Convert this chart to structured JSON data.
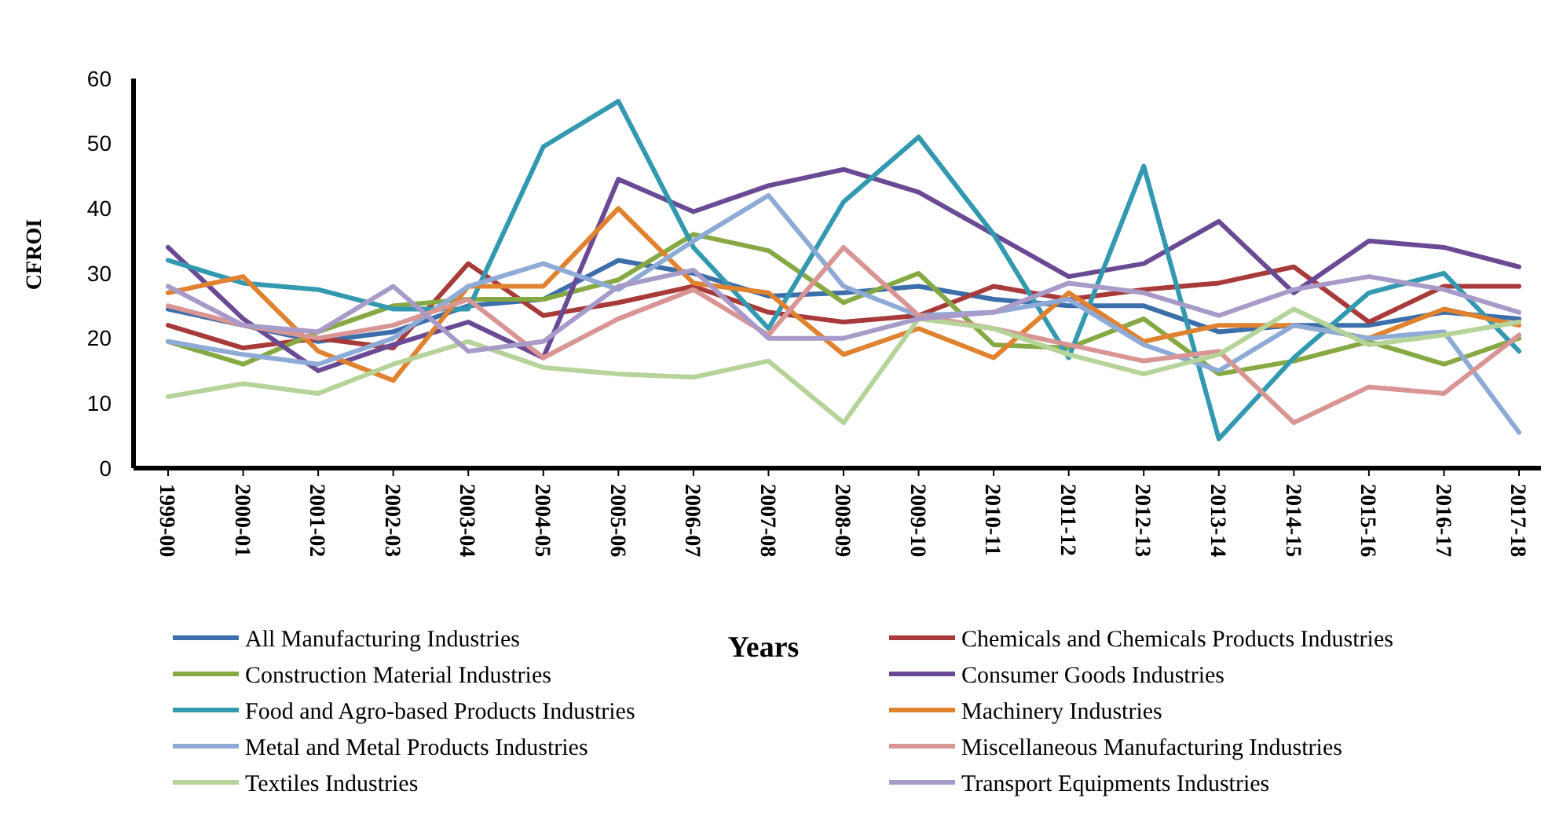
{
  "chart_data": {
    "type": "line",
    "xlabel": "Years",
    "ylabel": "CFROI",
    "legend": "bottom",
    "grid": false,
    "marker": "none",
    "line_style": "solid",
    "categories": [
      "1999-00",
      "2000-01",
      "2001-02",
      "2002-03",
      "2003-04",
      "2004-05",
      "2005-06",
      "2006-07",
      "2007-08",
      "2008-09",
      "2009-10",
      "2010-11",
      "2011-12",
      "2012-13",
      "2013-14",
      "2014-15",
      "2015-16",
      "2016-17",
      "2017-18"
    ],
    "ylim": [
      0,
      60
    ],
    "yticks": [
      0,
      10,
      20,
      30,
      40,
      50,
      60
    ],
    "series": [
      {
        "name": "All Manufacturing Industries",
        "color": "#3c6eab",
        "values": [
          24.5,
          22,
          19.5,
          21,
          25,
          26,
          32,
          30,
          26.5,
          27,
          28,
          26,
          25,
          25,
          21,
          22,
          22,
          24,
          23
        ]
      },
      {
        "name": "Chemicals and Chemicals Products Industries",
        "color": "#a83b3a",
        "values": [
          22,
          18.5,
          20,
          18.5,
          31.5,
          23.5,
          25.5,
          28,
          24,
          22.5,
          23.5,
          28,
          26,
          27.5,
          28.5,
          31,
          22.5,
          28,
          28
        ]
      },
      {
        "name": "Construction Material Industries",
        "color": "#86a943",
        "values": [
          19.5,
          16,
          21,
          25,
          26,
          26,
          29,
          36,
          33.5,
          25.5,
          30,
          19,
          18.5,
          23,
          14.5,
          16.5,
          19.5,
          16,
          20
        ]
      },
      {
        "name": "Consumer Goods Industries",
        "color": "#6a4a94",
        "values": [
          34,
          23,
          15,
          19,
          22.5,
          17,
          44.5,
          39.5,
          43.5,
          46,
          42.5,
          36,
          29.5,
          31.5,
          38,
          27,
          35,
          34,
          31
        ]
      },
      {
        "name": "Food and Agro-based Products Industries",
        "color": "#3399b0",
        "values": [
          32,
          28.5,
          27.5,
          24.5,
          24.5,
          49.5,
          56.5,
          34,
          21.5,
          41,
          51,
          36,
          17,
          46.5,
          4.5,
          17,
          27,
          30,
          18
        ]
      },
      {
        "name": "Machinery Industries",
        "color": "#e0822f",
        "values": [
          27,
          29.5,
          18,
          13.5,
          28,
          28,
          40,
          28.5,
          27,
          17.5,
          21.5,
          17,
          27,
          19.5,
          22,
          22,
          20,
          24.5,
          22
        ]
      },
      {
        "name": "Metal and Metal Products Industries",
        "color": "#8eaad6",
        "values": [
          19.5,
          17.5,
          16,
          20,
          28,
          31.5,
          27.5,
          35,
          42,
          28,
          23.5,
          24,
          26,
          19,
          15,
          22,
          20,
          21,
          5.5
        ]
      },
      {
        "name": "Miscellaneous Manufacturing Industries",
        "color": "#d99594",
        "values": [
          25,
          22,
          20,
          22,
          26,
          17,
          23,
          27.5,
          20.5,
          34,
          23.5,
          21.5,
          19,
          16.5,
          18,
          7,
          12.5,
          11.5,
          20.5
        ]
      },
      {
        "name": "Textiles Industries",
        "color": "#b6d39a",
        "values": [
          11,
          13,
          11.5,
          16,
          19.5,
          15.5,
          14.5,
          14,
          16.5,
          7,
          23,
          21.5,
          17.5,
          14.5,
          17.5,
          24.5,
          19,
          20.5,
          22.5
        ]
      },
      {
        "name": "Transport Equipments Industries",
        "color": "#a99bc9",
        "values": [
          28,
          22,
          21,
          28,
          18,
          19.5,
          28,
          30.5,
          20,
          20,
          23,
          24,
          28.5,
          27,
          23.5,
          27.5,
          29.5,
          27.5,
          24
        ]
      }
    ]
  }
}
